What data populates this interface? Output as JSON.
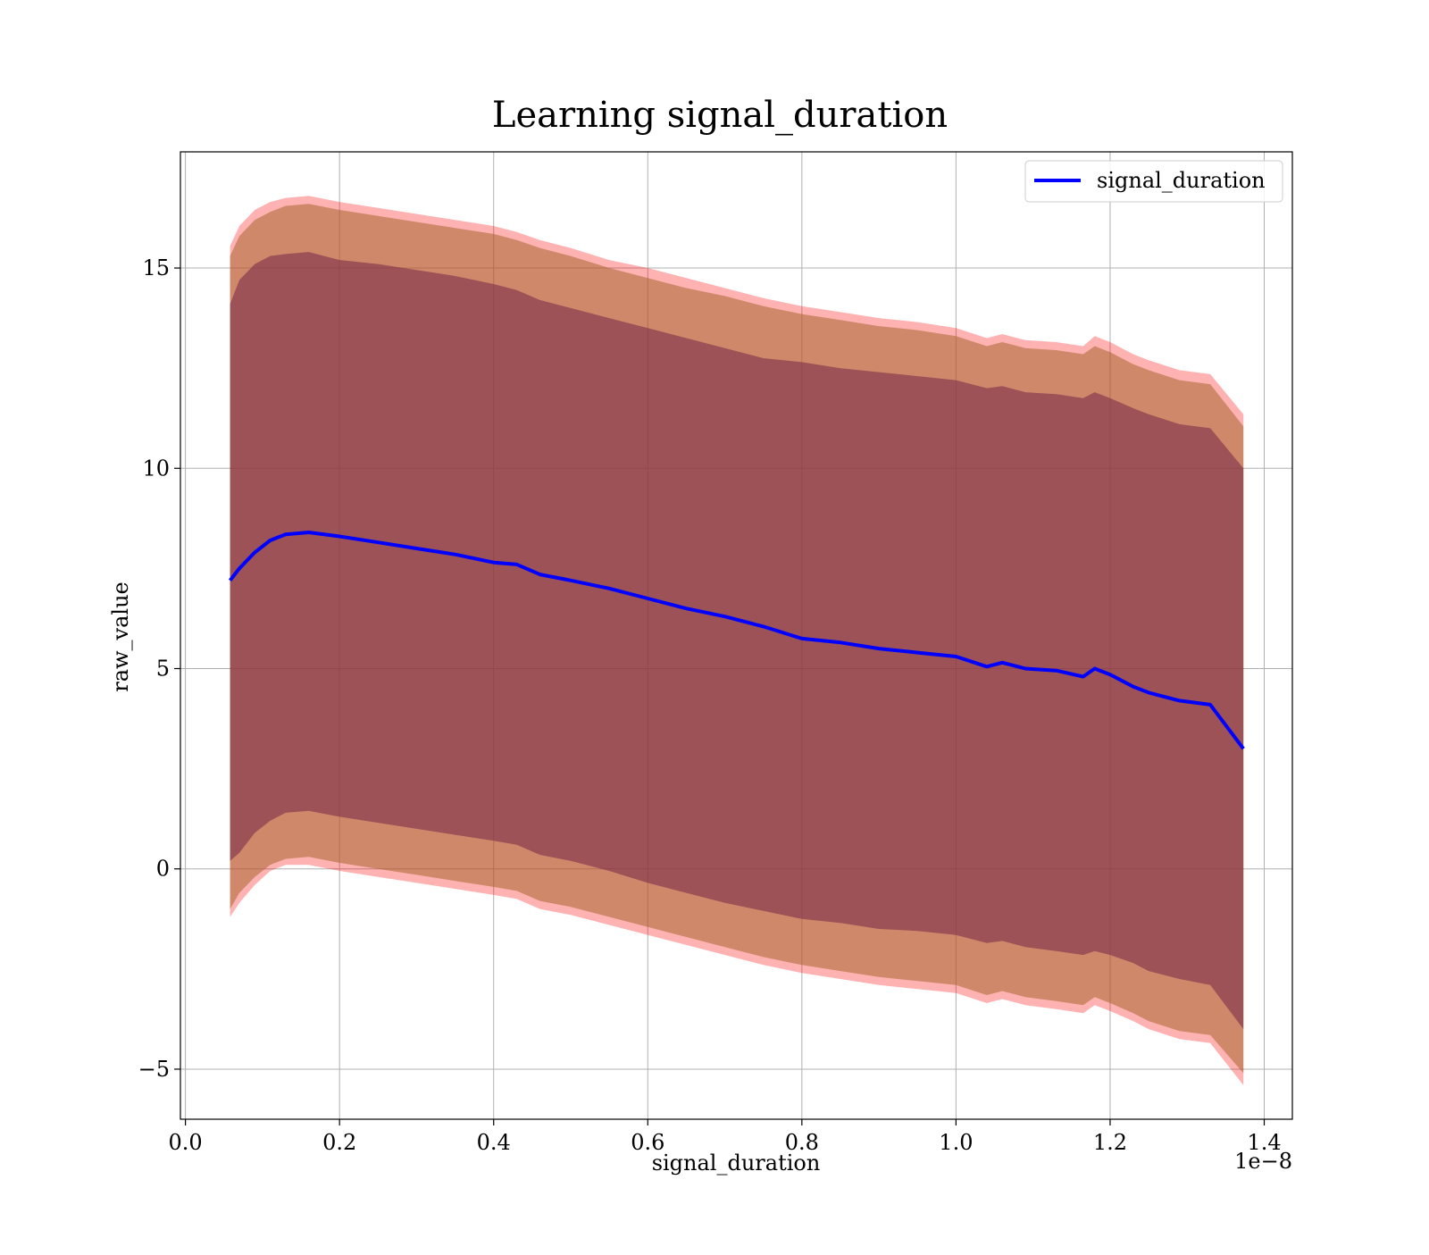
{
  "chart_data": {
    "type": "line",
    "title": "Learning signal_duration",
    "xlabel": "signal_duration",
    "ylabel": "raw_value",
    "x_offset_label": "1e−8",
    "xlim": [
      -0.0065,
      1.4365
    ],
    "ylim": [
      -6.25,
      17.9
    ],
    "x_ticks": [
      0.0,
      0.2,
      0.4,
      0.6,
      0.8,
      1.0,
      1.2,
      1.4
    ],
    "x_tick_labels": [
      "0.0",
      "0.2",
      "0.4",
      "0.6",
      "0.8",
      "1.0",
      "1.2",
      "1.4"
    ],
    "y_ticks": [
      -5,
      0,
      5,
      10,
      15
    ],
    "y_tick_labels": [
      "−5",
      "0",
      "5",
      "10",
      "15"
    ],
    "grid": true,
    "legend": {
      "position": "top-right",
      "entries": [
        "signal_duration"
      ]
    },
    "colors": {
      "line": "#0000ff",
      "band_outer": "#ff0000",
      "band_middle": "#aa6630",
      "band_inner": "#7a2f4a",
      "grid": "#b0b0b0"
    },
    "x": [
      0.058,
      0.07,
      0.09,
      0.11,
      0.13,
      0.16,
      0.2,
      0.25,
      0.3,
      0.35,
      0.4,
      0.43,
      0.46,
      0.5,
      0.55,
      0.6,
      0.65,
      0.7,
      0.75,
      0.8,
      0.85,
      0.9,
      0.95,
      1.0,
      1.04,
      1.06,
      1.09,
      1.13,
      1.165,
      1.18,
      1.2,
      1.23,
      1.25,
      1.29,
      1.33,
      1.373
    ],
    "series": [
      {
        "name": "signal_duration",
        "values": [
          7.2,
          7.5,
          7.9,
          8.2,
          8.35,
          8.4,
          8.3,
          8.15,
          8.0,
          7.85,
          7.65,
          7.6,
          7.35,
          7.2,
          7.0,
          6.75,
          6.5,
          6.3,
          6.05,
          5.75,
          5.65,
          5.5,
          5.4,
          5.3,
          5.05,
          5.15,
          5.0,
          4.95,
          4.8,
          5.0,
          4.85,
          4.55,
          4.4,
          4.2,
          4.1,
          3.0
        ]
      }
    ],
    "bands": [
      {
        "name": "inner",
        "upper": [
          14.1,
          14.7,
          15.1,
          15.3,
          15.35,
          15.4,
          15.2,
          15.1,
          14.95,
          14.8,
          14.6,
          14.45,
          14.2,
          14.0,
          13.75,
          13.5,
          13.25,
          13.0,
          12.75,
          12.65,
          12.5,
          12.4,
          12.3,
          12.2,
          12.0,
          12.05,
          11.9,
          11.85,
          11.75,
          11.9,
          11.75,
          11.5,
          11.35,
          11.1,
          11.0,
          10.0
        ],
        "lower": [
          0.2,
          0.4,
          0.9,
          1.2,
          1.4,
          1.45,
          1.3,
          1.15,
          1.0,
          0.85,
          0.7,
          0.6,
          0.35,
          0.2,
          -0.05,
          -0.35,
          -0.6,
          -0.85,
          -1.05,
          -1.25,
          -1.35,
          -1.5,
          -1.55,
          -1.65,
          -1.85,
          -1.8,
          -1.95,
          -2.05,
          -2.15,
          -2.05,
          -2.15,
          -2.35,
          -2.55,
          -2.75,
          -2.9,
          -4.0
        ]
      },
      {
        "name": "middle",
        "upper": [
          15.3,
          15.8,
          16.2,
          16.4,
          16.55,
          16.6,
          16.45,
          16.3,
          16.15,
          16.0,
          15.85,
          15.7,
          15.5,
          15.3,
          15.0,
          14.75,
          14.5,
          14.3,
          14.05,
          13.85,
          13.7,
          13.55,
          13.45,
          13.3,
          13.05,
          13.15,
          13.0,
          12.95,
          12.85,
          13.05,
          12.9,
          12.6,
          12.45,
          12.2,
          12.1,
          11.05
        ],
        "lower": [
          -1.0,
          -0.6,
          -0.2,
          0.1,
          0.25,
          0.3,
          0.15,
          0.0,
          -0.15,
          -0.3,
          -0.45,
          -0.55,
          -0.8,
          -0.95,
          -1.2,
          -1.45,
          -1.7,
          -1.95,
          -2.2,
          -2.4,
          -2.55,
          -2.7,
          -2.8,
          -2.9,
          -3.15,
          -3.05,
          -3.2,
          -3.3,
          -3.4,
          -3.2,
          -3.35,
          -3.6,
          -3.8,
          -4.05,
          -4.15,
          -5.1
        ]
      },
      {
        "name": "outer",
        "upper": [
          15.55,
          16.05,
          16.45,
          16.65,
          16.75,
          16.8,
          16.65,
          16.5,
          16.35,
          16.2,
          16.05,
          15.9,
          15.7,
          15.5,
          15.2,
          15.0,
          14.75,
          14.5,
          14.25,
          14.05,
          13.9,
          13.75,
          13.65,
          13.5,
          13.25,
          13.35,
          13.2,
          13.15,
          13.05,
          13.3,
          13.15,
          12.85,
          12.7,
          12.45,
          12.35,
          11.35
        ],
        "lower": [
          -1.2,
          -0.85,
          -0.4,
          -0.05,
          0.1,
          0.1,
          -0.05,
          -0.2,
          -0.35,
          -0.5,
          -0.65,
          -0.75,
          -1.0,
          -1.15,
          -1.4,
          -1.65,
          -1.9,
          -2.15,
          -2.4,
          -2.6,
          -2.75,
          -2.9,
          -3.0,
          -3.1,
          -3.35,
          -3.25,
          -3.4,
          -3.5,
          -3.6,
          -3.4,
          -3.55,
          -3.8,
          -4.0,
          -4.25,
          -4.35,
          -5.4
        ]
      }
    ]
  }
}
